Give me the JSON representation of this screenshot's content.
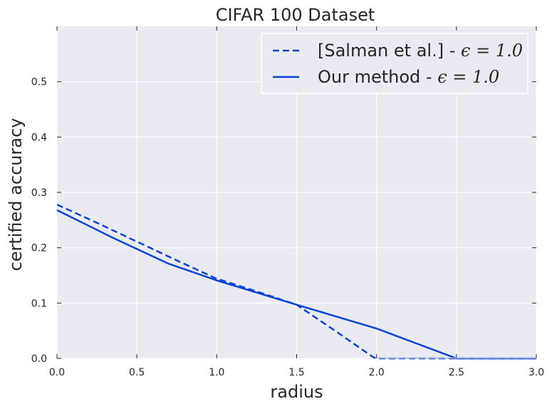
{
  "chart_data": {
    "type": "line",
    "title": "CIFAR 100 Dataset",
    "xlabel": "radius",
    "ylabel": "certified accuracy",
    "xlim": [
      0,
      3.0
    ],
    "ylim": [
      0,
      0.6
    ],
    "xticks": [
      "0.0",
      "0.5",
      "1.0",
      "1.5",
      "2.0",
      "2.5",
      "3.0"
    ],
    "yticks": [
      "0.0",
      "0.1",
      "0.2",
      "0.3",
      "0.4",
      "0.5"
    ],
    "grid": true,
    "legend_position": "top-right",
    "series": [
      {
        "name": "[Salman et al.] - ε = 1.0",
        "style": "dashed",
        "color": "#0a43d8",
        "x": [
          0.0,
          0.25,
          0.5,
          0.75,
          1.0,
          1.25,
          1.5,
          1.75,
          1.98,
          2.0,
          2.5,
          3.0
        ],
        "y": [
          0.278,
          0.245,
          0.211,
          0.177,
          0.144,
          0.121,
          0.097,
          0.048,
          0.002,
          0.0,
          0.0,
          0.0
        ]
      },
      {
        "name": "Our method - ε = 1.0",
        "style": "solid",
        "color": "#0a43d8",
        "x": [
          0.0,
          0.35,
          0.7,
          1.0,
          1.5,
          2.0,
          2.5,
          3.0
        ],
        "y": [
          0.268,
          0.218,
          0.171,
          0.141,
          0.097,
          0.054,
          0.0,
          0.0
        ]
      }
    ],
    "legend": {
      "entries": [
        {
          "prefix": "[Salman et al.] - ",
          "math": "ϵ = 1.0"
        },
        {
          "prefix": "Our method - ",
          "math": "ϵ = 1.0"
        }
      ]
    }
  },
  "colors": {
    "plot_background": "#eaeaf2",
    "grid": "#ffffff",
    "line": "#0a43d8"
  }
}
